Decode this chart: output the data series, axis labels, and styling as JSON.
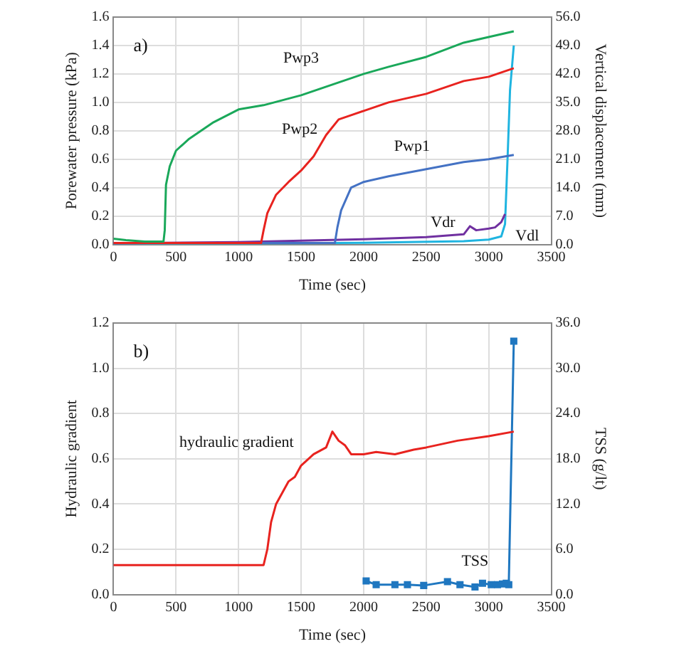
{
  "chart_data": [
    {
      "type": "line",
      "xlabel": "Time (sec)",
      "ylabel": "Porewater pressure (kPa)",
      "y2label": "Vertical displacement (mm)",
      "marker": "none",
      "grid": true,
      "legend": false,
      "xlim": [
        0,
        3500
      ],
      "xticks": [
        0,
        500,
        1000,
        1500,
        2000,
        2500,
        3000,
        3500
      ],
      "ylim": [
        0,
        1.6
      ],
      "yticks": [
        {
          "value": 0,
          "label": "0.0"
        },
        {
          "value": 0.2,
          "label": "0.2"
        },
        {
          "value": 0.4,
          "label": "0.4"
        },
        {
          "value": 0.6,
          "label": "0.6"
        },
        {
          "value": 0.8,
          "label": "0.8"
        },
        {
          "value": 1,
          "label": "1.0"
        },
        {
          "value": 1.2,
          "label": "1.2"
        },
        {
          "value": 1.4,
          "label": "1.4"
        },
        {
          "value": 1.6,
          "label": "1.6"
        }
      ],
      "y2lim": [
        0,
        56
      ],
      "y2ticks": [
        {
          "value": 0,
          "label": "0.0"
        },
        {
          "value": 7,
          "label": "7.0"
        },
        {
          "value": 14,
          "label": "14.0"
        },
        {
          "value": 21,
          "label": "21.0"
        },
        {
          "value": 28,
          "label": "28.0"
        },
        {
          "value": 35,
          "label": "35.0"
        },
        {
          "value": 42,
          "label": "42.0"
        },
        {
          "value": 49,
          "label": "49.0"
        },
        {
          "value": 56,
          "label": "56.0"
        }
      ],
      "annotations": [
        "a)"
      ],
      "series": [
        {
          "name": "Pwp3",
          "color": "#1aa85a",
          "x": [
            0,
            100,
            250,
            400,
            410,
            420,
            450,
            500,
            600,
            700,
            800,
            1000,
            1200,
            1500,
            1800,
            2000,
            2200,
            2500,
            2800,
            3000,
            3200
          ],
          "values": [
            0.04,
            0.03,
            0.02,
            0.02,
            0.1,
            0.42,
            0.55,
            0.66,
            0.74,
            0.8,
            0.86,
            0.95,
            0.98,
            1.05,
            1.14,
            1.2,
            1.25,
            1.32,
            1.42,
            1.46,
            1.5
          ]
        },
        {
          "name": "Pwp2",
          "color": "#e8231f",
          "x": [
            0,
            1180,
            1200,
            1230,
            1300,
            1400,
            1500,
            1600,
            1700,
            1800,
            1900,
            2000,
            2200,
            2500,
            2800,
            3000,
            3200
          ],
          "values": [
            0.01,
            0.01,
            0.1,
            0.22,
            0.35,
            0.44,
            0.52,
            0.62,
            0.77,
            0.88,
            0.91,
            0.94,
            1.0,
            1.06,
            1.15,
            1.18,
            1.24
          ]
        },
        {
          "name": "Pwp1",
          "color": "#4472c4",
          "x": [
            0,
            1770,
            1790,
            1820,
            1900,
            2000,
            2200,
            2500,
            2800,
            3000,
            3200
          ],
          "values": [
            0.01,
            0.01,
            0.12,
            0.24,
            0.4,
            0.44,
            0.48,
            0.53,
            0.58,
            0.6,
            0.63
          ]
        },
        {
          "name": "Vdr",
          "color": "#7030a0",
          "axis": "y2",
          "x": [
            0,
            1000,
            2000,
            2500,
            2800,
            2850,
            2900,
            3000,
            3050,
            3100,
            3130
          ],
          "values": [
            0.3,
            0.6,
            1.3,
            1.8,
            2.5,
            4.5,
            3.5,
            3.9,
            4.2,
            5.5,
            7.5
          ]
        },
        {
          "name": "Vdl",
          "color": "#1fb4e0",
          "axis": "y2",
          "x": [
            0,
            1000,
            2000,
            2800,
            3000,
            3100,
            3130,
            3150,
            3170,
            3200
          ],
          "values": [
            0,
            0.2,
            0.4,
            0.8,
            1.2,
            2,
            5,
            21,
            38,
            49
          ]
        }
      ]
    },
    {
      "type": "line",
      "xlabel": "Time (sec)",
      "ylabel": "Hydraulic gradient",
      "y2label": "TSS (g/lt)",
      "marker": "none",
      "grid": true,
      "legend": false,
      "xlim": [
        0,
        3500
      ],
      "xticks": [
        0,
        500,
        1000,
        1500,
        2000,
        2500,
        3000,
        3500
      ],
      "ylim": [
        0,
        1.2
      ],
      "yticks": [
        {
          "value": 0,
          "label": "0.0"
        },
        {
          "value": 0.2,
          "label": "0.2"
        },
        {
          "value": 0.4,
          "label": "0.4"
        },
        {
          "value": 0.6,
          "label": "0.6"
        },
        {
          "value": 0.8,
          "label": "0.8"
        },
        {
          "value": 1,
          "label": "1.0"
        },
        {
          "value": 1.2,
          "label": "1.2"
        }
      ],
      "y2lim": [
        0,
        36
      ],
      "y2ticks": [
        {
          "value": 0,
          "label": "0.0"
        },
        {
          "value": 6,
          "label": "6.0"
        },
        {
          "value": 12,
          "label": "12.0"
        },
        {
          "value": 18,
          "label": "18.0"
        },
        {
          "value": 24,
          "label": "24.0"
        },
        {
          "value": 30,
          "label": "30.0"
        },
        {
          "value": 36,
          "label": "36.0"
        }
      ],
      "annotations": [
        "b)"
      ],
      "series": [
        {
          "name": "hydraulic gradient",
          "color": "#e8231f",
          "x": [
            0,
            1200,
            1230,
            1260,
            1300,
            1350,
            1400,
            1450,
            1500,
            1600,
            1700,
            1750,
            1800,
            1850,
            1900,
            2000,
            2100,
            2250,
            2400,
            2500,
            2750,
            3000,
            3200
          ],
          "values": [
            0.13,
            0.13,
            0.2,
            0.32,
            0.4,
            0.45,
            0.5,
            0.52,
            0.57,
            0.62,
            0.65,
            0.72,
            0.68,
            0.66,
            0.62,
            0.62,
            0.63,
            0.62,
            0.64,
            0.65,
            0.68,
            0.7,
            0.72
          ]
        },
        {
          "name": "TSS",
          "color": "#1f77c0",
          "axis": "y2",
          "marker": "square",
          "x": [
            2020,
            2100,
            2250,
            2350,
            2480,
            2670,
            2770,
            2890,
            2950,
            3020,
            3070,
            3110,
            3140,
            3160,
            3200
          ],
          "values": [
            1.8,
            1.3,
            1.3,
            1.3,
            1.2,
            1.7,
            1.3,
            1.0,
            1.5,
            1.3,
            1.3,
            1.4,
            1.5,
            1.3,
            33.6
          ]
        }
      ]
    }
  ]
}
